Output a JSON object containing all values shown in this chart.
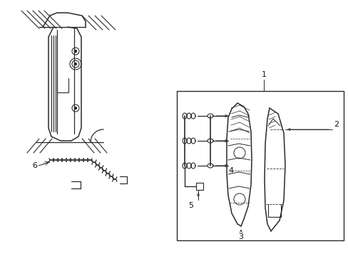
{
  "bg_color": "#ffffff",
  "line_color": "#2a2a2a",
  "label_color": "#111111",
  "fig_width": 4.89,
  "fig_height": 3.6,
  "dpi": 100
}
